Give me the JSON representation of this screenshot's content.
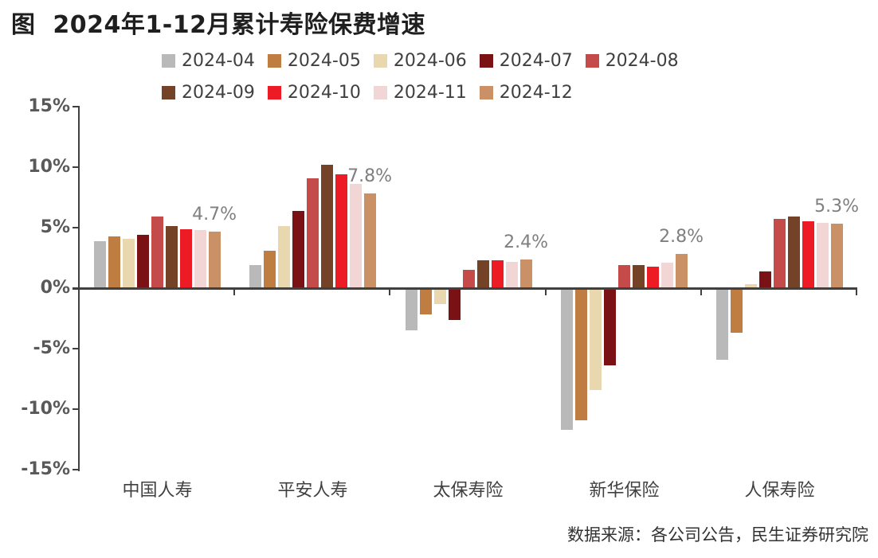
{
  "title": "图  2024年1-12月累计寿险保费增速",
  "source": "数据来源：各公司公告，民生证券研究院",
  "chart_data": {
    "type": "bar",
    "title": "2024年1-12月累计寿险保费增速",
    "categories": [
      "中国人寿",
      "平安人寿",
      "太保寿险",
      "新华保险",
      "人保寿险"
    ],
    "series": [
      {
        "name": "2024-04",
        "color": "#b9b9b9",
        "values": [
          3.9,
          1.9,
          -3.5,
          -11.7,
          -5.9
        ]
      },
      {
        "name": "2024-05",
        "color": "#c07d42",
        "values": [
          4.3,
          3.1,
          -2.2,
          -10.9,
          -3.7
        ]
      },
      {
        "name": "2024-06",
        "color": "#e9d7b0",
        "values": [
          4.1,
          5.1,
          -1.3,
          -8.4,
          0.3
        ]
      },
      {
        "name": "2024-07",
        "color": "#7a1215",
        "values": [
          4.4,
          6.4,
          -2.6,
          -6.4,
          1.4
        ]
      },
      {
        "name": "2024-08",
        "color": "#c54a4a",
        "values": [
          5.9,
          9.1,
          1.5,
          1.9,
          5.7
        ]
      },
      {
        "name": "2024-09",
        "color": "#744327",
        "values": [
          5.1,
          10.2,
          2.3,
          1.9,
          5.9
        ]
      },
      {
        "name": "2024-10",
        "color": "#ed1b24",
        "values": [
          4.9,
          9.4,
          2.3,
          1.8,
          5.5
        ]
      },
      {
        "name": "2024-11",
        "color": "#f2d5d5",
        "values": [
          4.8,
          8.6,
          2.2,
          2.1,
          5.4
        ]
      },
      {
        "name": "2024-12",
        "color": "#cb9166",
        "values": [
          4.7,
          7.8,
          2.4,
          2.8,
          5.3
        ]
      }
    ],
    "annotations": [
      {
        "category": "中国人寿",
        "text": "4.7%"
      },
      {
        "category": "平安人寿",
        "text": "7.8%"
      },
      {
        "category": "太保寿险",
        "text": "2.4%"
      },
      {
        "category": "新华保险",
        "text": "2.8%"
      },
      {
        "category": "人保寿险",
        "text": "5.3%"
      }
    ],
    "ylabel": "",
    "xlabel": "",
    "ylim": [
      -15,
      15
    ],
    "ytick_step": 5,
    "yticks": [
      "15%",
      "10%",
      "5%",
      "0%",
      "-5%",
      "-10%",
      "-15%"
    ],
    "grid": false,
    "legend_position": "top"
  }
}
